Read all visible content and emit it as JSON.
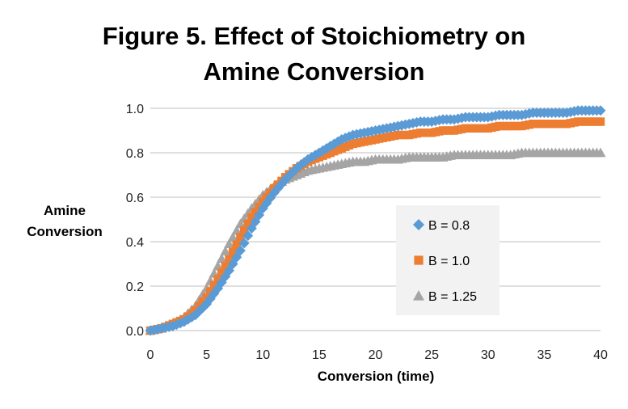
{
  "chart_data": {
    "type": "scatter",
    "title_line1": "Figure 5. Effect of Stoichiometry on",
    "title_line2": "Amine Conversion",
    "ylabel_line1": "Amine",
    "ylabel_line2": "Conversion",
    "xlabel": "Conversion (time)",
    "xlim": [
      0,
      40
    ],
    "ylim": [
      0,
      1.0
    ],
    "x_ticks": [
      "0",
      "5",
      "10",
      "15",
      "20",
      "25",
      "30",
      "35",
      "40"
    ],
    "y_ticks": [
      "0.0",
      "0.2",
      "0.4",
      "0.6",
      "0.8",
      "1.0"
    ],
    "grid": "horizontal",
    "legend_position": "right",
    "series": [
      {
        "name": "B = 0.8",
        "marker": "diamond",
        "color": "#5B9BD5",
        "x": [
          0,
          1,
          2,
          3,
          4,
          5,
          6,
          7,
          8,
          9,
          10,
          11,
          12,
          13,
          14,
          15,
          16,
          17,
          18,
          19,
          20,
          21,
          22,
          23,
          24,
          25,
          26,
          27,
          28,
          29,
          30,
          31,
          32,
          33,
          34,
          35,
          36,
          37,
          38,
          39,
          40
        ],
        "y": [
          0.0,
          0.01,
          0.02,
          0.04,
          0.07,
          0.12,
          0.19,
          0.27,
          0.36,
          0.46,
          0.55,
          0.62,
          0.68,
          0.73,
          0.77,
          0.8,
          0.83,
          0.86,
          0.88,
          0.89,
          0.9,
          0.91,
          0.92,
          0.93,
          0.94,
          0.94,
          0.95,
          0.95,
          0.96,
          0.96,
          0.96,
          0.97,
          0.97,
          0.97,
          0.98,
          0.98,
          0.98,
          0.98,
          0.99,
          0.99,
          0.99
        ]
      },
      {
        "name": "B = 1.0",
        "marker": "square",
        "color": "#ED7D31",
        "x": [
          0,
          1,
          2,
          3,
          4,
          5,
          6,
          7,
          8,
          9,
          10,
          11,
          12,
          13,
          14,
          15,
          16,
          17,
          18,
          19,
          20,
          21,
          22,
          23,
          24,
          25,
          26,
          27,
          28,
          29,
          30,
          31,
          32,
          33,
          34,
          35,
          36,
          37,
          38,
          39,
          40
        ],
        "y": [
          0.0,
          0.01,
          0.03,
          0.05,
          0.09,
          0.15,
          0.23,
          0.32,
          0.42,
          0.51,
          0.58,
          0.64,
          0.69,
          0.73,
          0.76,
          0.78,
          0.8,
          0.82,
          0.84,
          0.85,
          0.86,
          0.87,
          0.88,
          0.88,
          0.89,
          0.89,
          0.9,
          0.9,
          0.91,
          0.91,
          0.91,
          0.92,
          0.92,
          0.92,
          0.93,
          0.93,
          0.93,
          0.93,
          0.94,
          0.94,
          0.94
        ]
      },
      {
        "name": "B = 1.25",
        "marker": "triangle",
        "color": "#A5A5A5",
        "x": [
          0,
          1,
          2,
          3,
          4,
          5,
          6,
          7,
          8,
          9,
          10,
          11,
          12,
          13,
          14,
          15,
          16,
          17,
          18,
          19,
          20,
          21,
          22,
          23,
          24,
          25,
          26,
          27,
          28,
          29,
          30,
          31,
          32,
          33,
          34,
          35,
          36,
          37,
          38,
          39,
          40
        ],
        "y": [
          0.0,
          0.01,
          0.03,
          0.06,
          0.11,
          0.19,
          0.29,
          0.39,
          0.48,
          0.55,
          0.61,
          0.65,
          0.68,
          0.7,
          0.72,
          0.73,
          0.74,
          0.75,
          0.76,
          0.76,
          0.77,
          0.77,
          0.77,
          0.78,
          0.78,
          0.78,
          0.78,
          0.79,
          0.79,
          0.79,
          0.79,
          0.79,
          0.79,
          0.8,
          0.8,
          0.8,
          0.8,
          0.8,
          0.8,
          0.8,
          0.8
        ]
      }
    ]
  }
}
